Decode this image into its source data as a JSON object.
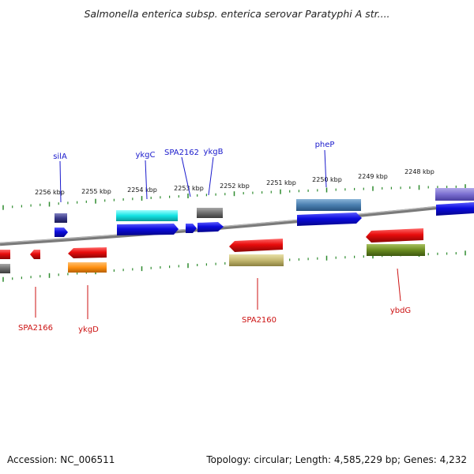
{
  "title": "Salmonella enterica subsp. enterica serovar Paratyphi A str....",
  "footer": {
    "accession": "Accession: NC_006511",
    "topology": "Topology: circular; Length: 4,585,229 bp; Genes: 4,232"
  },
  "scale_labels": [
    "2256 kbp",
    "2255 kbp",
    "2254 kbp",
    "2253 kbp",
    "2252 kbp",
    "2251 kbp",
    "2250 kbp",
    "2249 kbp",
    "2248 kbp"
  ],
  "gene_labels_forward": [
    {
      "name": "silA",
      "color": "#1a1acc"
    },
    {
      "name": "ykgC",
      "color": "#1a1acc"
    },
    {
      "name": "SPA2162",
      "color": "#1a1acc"
    },
    {
      "name": "ykgB",
      "color": "#1a1acc"
    },
    {
      "name": "pheP",
      "color": "#1a1acc"
    }
  ],
  "gene_labels_reverse": [
    {
      "name": "SPA2166",
      "color": "#cc1111"
    },
    {
      "name": "ykgD",
      "color": "#cc1111"
    },
    {
      "name": "SPA2160",
      "color": "#cc1111"
    },
    {
      "name": "ybdG",
      "color": "#cc1111"
    }
  ],
  "colors": {
    "backbone": "#808080",
    "ticks": "#2e8b2e",
    "forward_cds": "#0b0bdd",
    "reverse_cds": "#e80c0c"
  }
}
